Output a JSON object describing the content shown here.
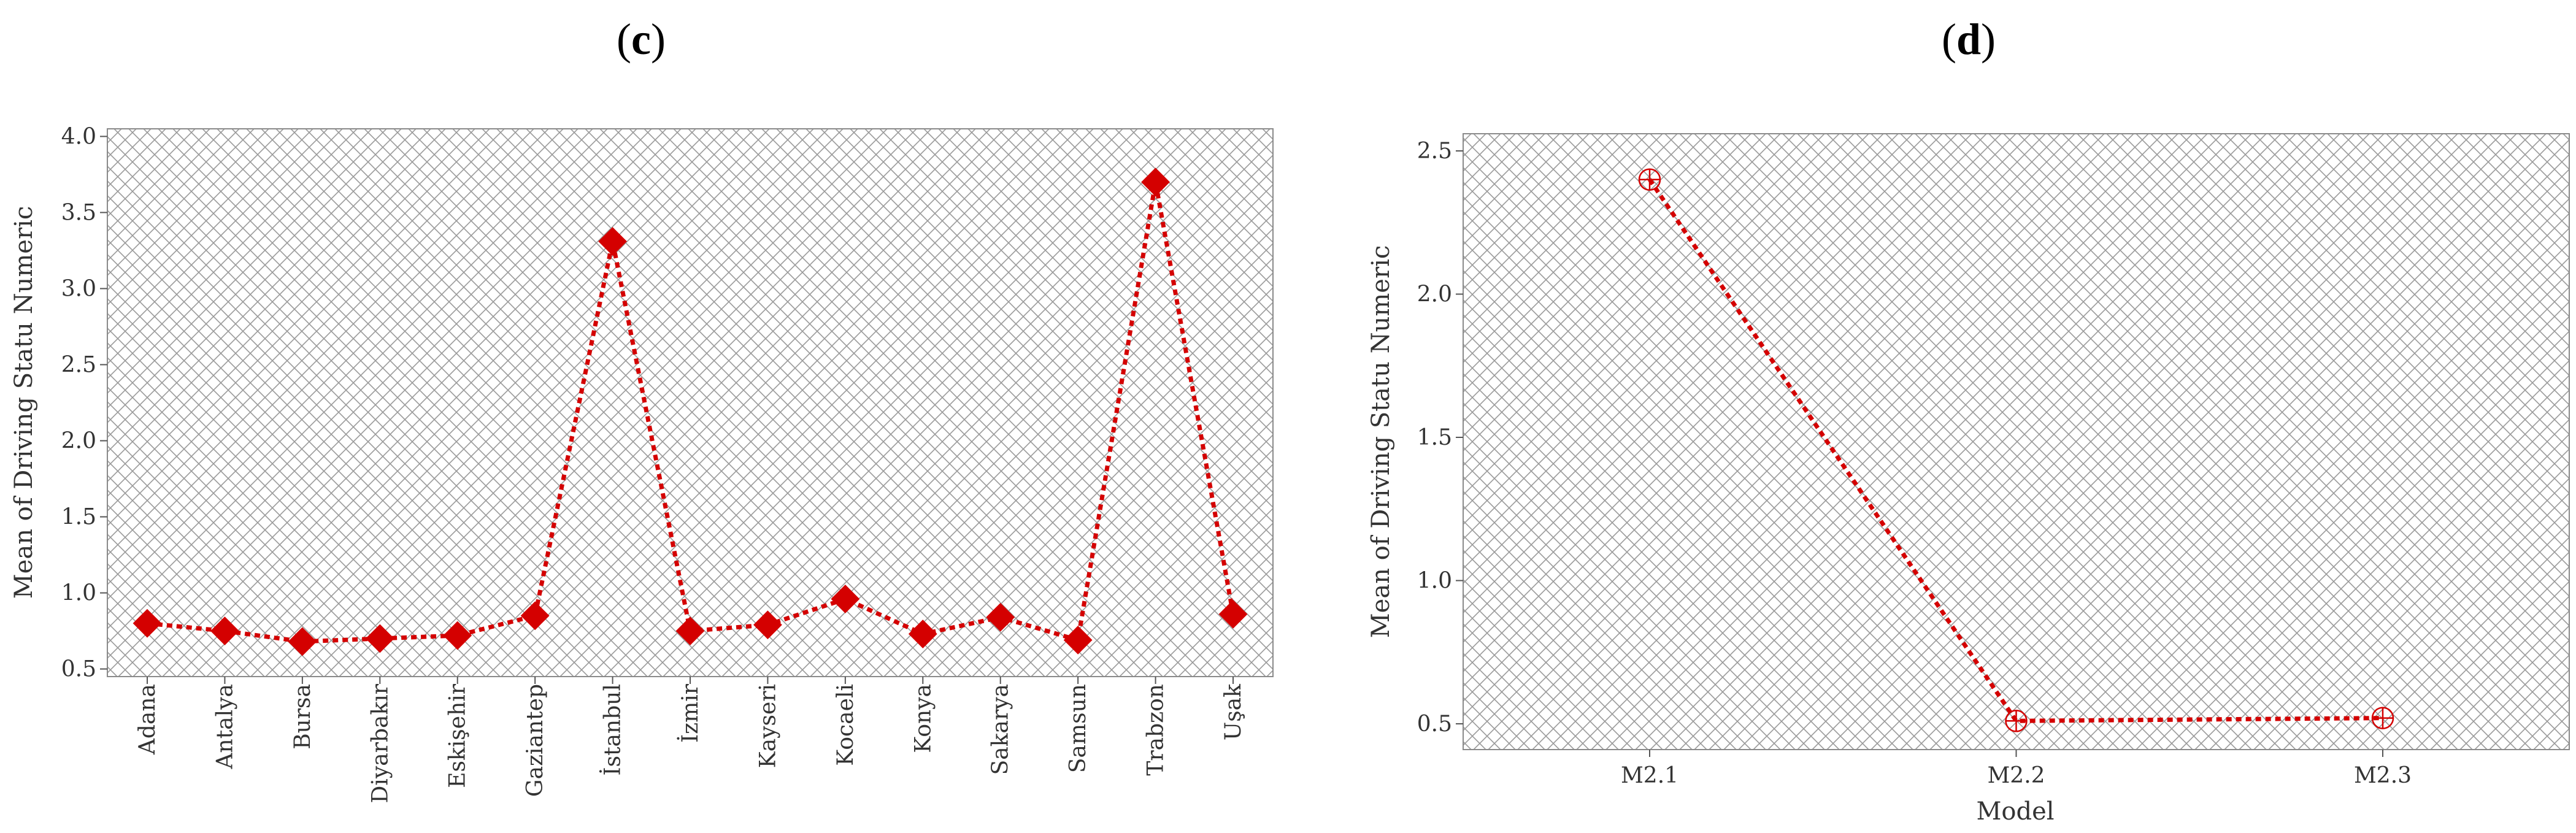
{
  "panels": {
    "c": {
      "open": "(",
      "letter": "c",
      "close": ")"
    },
    "d": {
      "open": "(",
      "letter": "d",
      "close": ")"
    }
  },
  "colors": {
    "series": "#d40000",
    "hatch": "#9a9a9a",
    "frame": "#8a8a8a",
    "background": "#ffffff"
  },
  "chart_data": [
    {
      "id": "c",
      "type": "line",
      "title": "",
      "xlabel": "",
      "ylabel": "Mean of Driving Statu Numeric",
      "categories": [
        "Adana",
        "Antalya",
        "Bursa",
        "Diyarbakır",
        "Eskişehir",
        "Gaziantep",
        "İstanbul",
        "İzmir",
        "Kayseri",
        "Kocaeli",
        "Konya",
        "Sakarya",
        "Samsun",
        "Trabzon",
        "Uşak"
      ],
      "series": [
        {
          "values": [
            0.8,
            0.75,
            0.68,
            0.7,
            0.72,
            0.85,
            3.31,
            0.75,
            0.79,
            0.96,
            0.73,
            0.84,
            0.69,
            3.7,
            0.86
          ]
        }
      ],
      "marker": "filled-diamond",
      "line_style": "dashed",
      "ylim": [
        0.45,
        4.05
      ],
      "yticks": [
        0.5,
        1.0,
        1.5,
        2.0,
        2.5,
        3.0,
        3.5,
        4.0
      ],
      "ytick_labels": [
        "0.5",
        "1.0",
        "1.5",
        "2.0",
        "2.5",
        "3.0",
        "3.5",
        "4.0"
      ],
      "xtick_rotation": "vertical",
      "grid": false,
      "background": "crosshatch"
    },
    {
      "id": "d",
      "type": "line",
      "title": "",
      "xlabel": "Model",
      "ylabel": "Mean of Driving Statu Numeric",
      "categories": [
        "M2.1",
        "M2.2",
        "M2.3"
      ],
      "series": [
        {
          "values": [
            2.4,
            0.51,
            0.52
          ]
        }
      ],
      "marker": "circle-plus",
      "line_style": "dashed",
      "ylim": [
        0.41,
        2.56
      ],
      "yticks": [
        0.5,
        1.0,
        1.5,
        2.0,
        2.5
      ],
      "ytick_labels": [
        "0.5",
        "1.0",
        "1.5",
        "2.0",
        "2.5"
      ],
      "grid": false,
      "background": "crosshatch"
    }
  ]
}
